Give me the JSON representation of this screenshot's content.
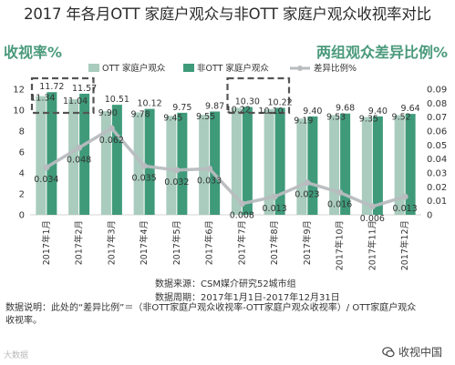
{
  "title": "2017 年各月OTT 家庭户观众与非OTT 家庭户观众收视率对比",
  "left_heading": "收视率%",
  "right_heading": "两组观众差异比例%",
  "notes": {
    "source": "数据来源：CSM媒介研究52城市组",
    "period": "数据周期：2017年1月1日-2017年12月31日",
    "description": "数据说明：此处的“差异比例”＝（非OTT家庭户观众收视率-OTT家庭户观众收视率）/ OTT家庭户观众收视率。"
  },
  "footer": {
    "left_logo": "大数据",
    "brand": "收视中国",
    "brand_icon": "chat-bubbles-icon"
  },
  "colors": {
    "ott": "#a9ccbe",
    "non_ott": "#3f9a7a",
    "diff": "#b8bcbf",
    "heading": "#4a9a7c"
  },
  "chart_data": {
    "type": "bar",
    "categories": [
      "2017年1月",
      "2017年2月",
      "2017年3月",
      "2017年4月",
      "2017年5月",
      "2017年6月",
      "2017年7月",
      "2017年8月",
      "2017年9月",
      "2017年10月",
      "2017年11月",
      "2017年12月"
    ],
    "series": [
      {
        "name": "OTT 家庭户观众",
        "axis": "left",
        "type": "bar",
        "values": [
          11.34,
          11.04,
          9.9,
          9.78,
          9.45,
          9.55,
          10.22,
          10.1,
          9.19,
          9.53,
          9.35,
          9.52
        ],
        "labels": [
          "11.34",
          "11.04",
          "9.90",
          "9.78",
          "9.45",
          "9.55",
          "10.22",
          "10.10",
          "9.19",
          "9.53",
          "9.35",
          "9.52"
        ]
      },
      {
        "name": "非OTT 家庭户观众",
        "axis": "left",
        "type": "bar",
        "values": [
          11.72,
          11.57,
          10.51,
          10.12,
          9.75,
          9.87,
          10.3,
          10.22,
          9.4,
          9.68,
          9.4,
          9.64
        ],
        "labels": [
          "11.72",
          "11.57",
          "10.51",
          "10.12",
          "9.75",
          "9.87",
          "10.30",
          "10.22",
          "9.40",
          "9.68",
          "9.40",
          "9.64"
        ]
      },
      {
        "name": "差异比例%",
        "axis": "right",
        "type": "line",
        "values": [
          0.034,
          0.048,
          0.062,
          0.035,
          0.032,
          0.033,
          0.008,
          0.013,
          0.023,
          0.016,
          0.006,
          0.013
        ],
        "labels": [
          "0.034",
          "0.048",
          "0.062",
          "0.035",
          "0.032",
          "0.033",
          "0.008",
          "0.013",
          "0.023",
          "0.016",
          "0.006",
          "0.013"
        ]
      }
    ],
    "y_left": {
      "min": 0,
      "max": 12,
      "ticks": [
        0,
        2,
        4,
        6,
        8,
        10,
        12
      ]
    },
    "y_right": {
      "min": 0,
      "max": 0.09,
      "ticks": [
        "0",
        "0.01",
        "0.02",
        "0.03",
        "0.04",
        "0.05",
        "0.06",
        "0.07",
        "0.08",
        "0.09"
      ]
    },
    "grid": false,
    "legend_position": "top",
    "highlight_groups": [
      [
        0,
        1
      ],
      [
        6,
        7
      ]
    ]
  }
}
